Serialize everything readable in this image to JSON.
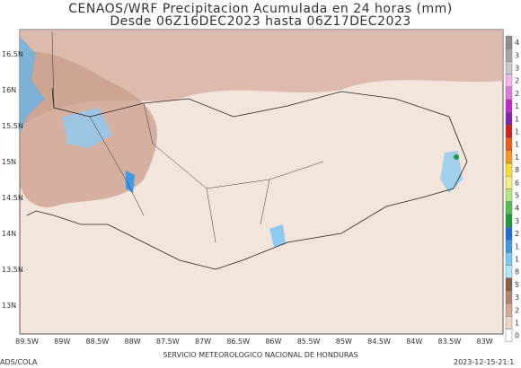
{
  "map": {
    "title": [
      "CENAOS/WRF Precipitacion Acumulada en 24 horas (mm)",
      "Desde 06Z16DEC2023 hasta 06Z17DEC2023"
    ],
    "lat_labels": [
      "16.5N",
      "16N",
      "15.5N",
      "15N",
      "14.5N",
      "14N",
      "13.5N",
      "13N"
    ],
    "lon_labels": [
      "89.5W",
      "89W",
      "88.5W",
      "88W",
      "87.5W",
      "87W",
      "86.5W",
      "86W",
      "85.5W",
      "85W",
      "84.5W",
      "84W",
      "83.5W",
      "83W"
    ],
    "legend": [
      {
        "label": "4",
        "color": "#8c8c8c"
      },
      {
        "label": "3",
        "color": "#a6a6a6"
      },
      {
        "label": "3",
        "color": "#c8c8c8"
      },
      {
        "label": "2",
        "color": "#f2b6ea"
      },
      {
        "label": "2",
        "color": "#e27ad8"
      },
      {
        "label": "1",
        "color": "#c02ac8"
      },
      {
        "label": "1",
        "color": "#8a1ea8"
      },
      {
        "label": "1",
        "color": "#d21e1e"
      },
      {
        "label": "1",
        "color": "#f05a14"
      },
      {
        "label": "1",
        "color": "#f89a1e"
      },
      {
        "label": "8",
        "color": "#fadc2a"
      },
      {
        "label": "6",
        "color": "#f6f07a"
      },
      {
        "label": "5",
        "color": "#b4e67a"
      },
      {
        "label": "4",
        "color": "#4cc24c"
      },
      {
        "label": "3",
        "color": "#1e9a3c"
      },
      {
        "label": "2",
        "color": "#1e6ed2"
      },
      {
        "label": "1",
        "color": "#3c9ae6"
      },
      {
        "label": "1",
        "color": "#78c8f0"
      },
      {
        "label": "8",
        "color": "#b4e6fa"
      },
      {
        "label": "5",
        "color": "#8a5a4a"
      },
      {
        "label": "3",
        "color": "#b4826e"
      },
      {
        "label": "2",
        "color": "#d2aa96"
      },
      {
        "label": "1",
        "color": "#ecd6c8"
      },
      {
        "label": "0",
        "color": "#ffffff"
      }
    ],
    "footer": {
      "left": "ADS/COLA",
      "center": "SERVICIO METEOROLOGICO NACIONAL DE HONDURAS",
      "right": "2023-12-15-21:1"
    }
  }
}
